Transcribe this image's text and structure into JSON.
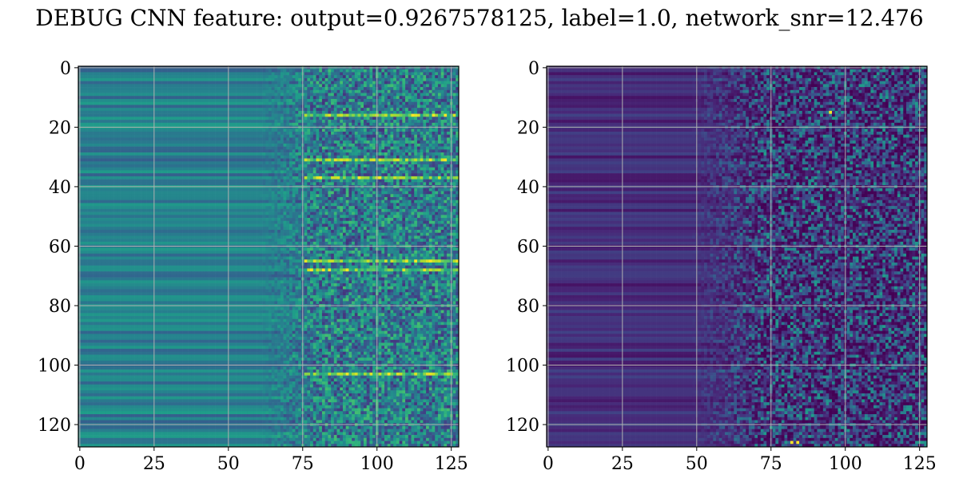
{
  "figure": {
    "suptitle": "DEBUG CNN feature: output=0.9267578125, label=1.0, network_snr=12.476"
  },
  "colormap": {
    "name": "viridis",
    "stops": [
      "#440154",
      "#482878",
      "#3e4989",
      "#31688e",
      "#26828e",
      "#1f9e89",
      "#35b779",
      "#6ece58",
      "#b5de2b",
      "#fde725"
    ]
  },
  "chart_data": [
    {
      "type": "heatmap",
      "title": "",
      "xlabel": "",
      "ylabel": "",
      "rows": 128,
      "cols": 128,
      "xlim": [
        0,
        127
      ],
      "ylim": [
        127,
        0
      ],
      "xticks": [
        0,
        25,
        50,
        75,
        100,
        125
      ],
      "yticks": [
        0,
        20,
        40,
        60,
        80,
        100,
        120
      ],
      "grid": true,
      "colormap": "viridis",
      "description_values": {
        "left_region_cols_0_70": "smooth horizontal stripes, mid-range values (teal-green)",
        "right_region_cols_75_127": "noisy, higher variance values",
        "bright_rows": [
          16,
          31,
          37,
          65,
          68,
          103
        ]
      }
    },
    {
      "type": "heatmap",
      "title": "",
      "xlabel": "",
      "ylabel": "",
      "rows": 128,
      "cols": 128,
      "xlim": [
        0,
        127
      ],
      "ylim": [
        127,
        0
      ],
      "xticks": [
        0,
        25,
        50,
        75,
        100,
        125
      ],
      "yticks": [
        0,
        20,
        40,
        60,
        80,
        100,
        120
      ],
      "grid": true,
      "colormap": "viridis",
      "description_values": {
        "left_region_cols_0_50": "low values, dark purple horizontal stripes",
        "right_region_cols_50_127": "sparse noisy higher values",
        "hot_spots": [
          [
            95,
            15
          ],
          [
            82,
            126
          ],
          [
            84,
            126
          ]
        ]
      }
    }
  ]
}
